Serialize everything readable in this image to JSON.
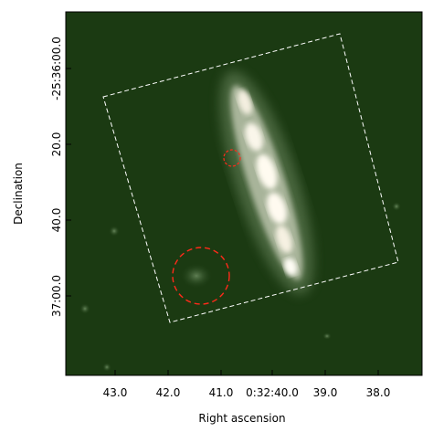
{
  "chart_data": {
    "type": "heatmap",
    "title": "",
    "xlabel": "Right ascension",
    "ylabel": "Declination",
    "x_ticks": [
      "43.0",
      "42.0",
      "41.0",
      "0:32:40.0",
      "39.0",
      "38.0"
    ],
    "y_ticks": [
      "-25:36:00.0",
      "20.0",
      "40.0",
      "37:00.0"
    ],
    "colormap": "dark-green to white",
    "colors": {
      "background": "#1b3a12",
      "frame": "#000000",
      "footprint": "#ffffff",
      "circles": "#ff2a1a"
    },
    "annotations": [
      {
        "type": "footprint",
        "style": "dashed",
        "color": "white"
      },
      {
        "type": "circle",
        "size": "small",
        "style": "dashed",
        "color": "red"
      },
      {
        "type": "circle",
        "size": "large",
        "style": "dashed",
        "color": "red"
      }
    ]
  }
}
